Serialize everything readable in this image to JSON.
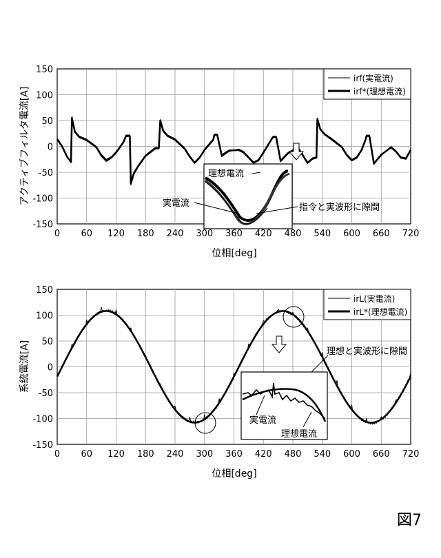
{
  "figure_label": "図7",
  "chart_data": [
    {
      "type": "line",
      "ylabel": "アクティブフィルタ電流[A]",
      "xlabel": "位相[deg]",
      "xlim": [
        0,
        720
      ],
      "ylim": [
        -150,
        150
      ],
      "xticks": [
        0,
        60,
        120,
        180,
        240,
        300,
        360,
        420,
        480,
        540,
        600,
        660,
        720
      ],
      "yticks": [
        -150,
        -100,
        -50,
        0,
        50,
        100,
        150
      ],
      "grid": true,
      "legend_position": "top-right",
      "series": [
        {
          "name": "irf(実電流)",
          "style": "thin",
          "x": [
            0,
            10,
            20,
            28,
            30,
            36,
            45,
            60,
            80,
            90,
            100,
            110,
            120,
            135,
            140,
            148,
            150,
            156,
            165,
            180,
            200,
            207,
            210,
            216,
            225,
            240,
            260,
            270,
            280,
            290,
            300,
            318,
            320,
            326,
            335,
            350,
            370,
            380,
            390,
            400,
            410,
            420,
            438,
            440,
            446,
            455,
            470,
            490,
            500,
            510,
            520,
            528,
            530,
            536,
            545,
            560,
            580,
            590,
            600,
            610,
            620,
            628,
            630,
            636,
            645,
            660,
            680,
            690,
            700,
            710,
            720
          ],
          "y": [
            15,
            0,
            -20,
            -32,
            58,
            30,
            20,
            14,
            0,
            -15,
            -25,
            -20,
            -10,
            10,
            22,
            22,
            -75,
            -55,
            -40,
            -20,
            -5,
            -5,
            52,
            32,
            22,
            15,
            -3,
            -18,
            -30,
            -20,
            -5,
            15,
            24,
            24,
            -20,
            -10,
            -5,
            -10,
            -20,
            -30,
            -25,
            -10,
            18,
            20,
            20,
            -30,
            -15,
            0,
            -15,
            -30,
            -22,
            -20,
            55,
            35,
            25,
            15,
            0,
            -15,
            -25,
            -20,
            -5,
            15,
            22,
            22,
            -35,
            -18,
            0,
            -8,
            -20,
            -22,
            -5
          ]
        },
        {
          "name": "irf*(理想電流)",
          "style": "thick",
          "x": [
            0,
            10,
            20,
            28,
            30,
            36,
            45,
            60,
            80,
            90,
            100,
            110,
            120,
            135,
            140,
            148,
            150,
            156,
            165,
            180,
            200,
            207,
            210,
            216,
            225,
            240,
            260,
            270,
            280,
            290,
            300,
            318,
            320,
            326,
            335,
            350,
            370,
            380,
            390,
            400,
            410,
            420,
            438,
            440,
            446,
            455,
            470,
            490,
            500,
            510,
            520,
            528,
            530,
            536,
            545,
            560,
            580,
            590,
            600,
            610,
            620,
            628,
            630,
            636,
            645,
            660,
            680,
            690,
            700,
            710,
            720
          ],
          "y": [
            14,
            0,
            -20,
            -30,
            55,
            28,
            18,
            12,
            -2,
            -18,
            -28,
            -22,
            -12,
            8,
            20,
            20,
            -72,
            -52,
            -38,
            -18,
            -3,
            -3,
            50,
            30,
            20,
            13,
            -5,
            -20,
            -32,
            -22,
            -7,
            13,
            22,
            22,
            -17,
            -8,
            -7,
            -12,
            -22,
            -32,
            -27,
            -12,
            16,
            18,
            18,
            -28,
            -13,
            -2,
            -17,
            -32,
            -24,
            -22,
            53,
            33,
            23,
            13,
            -2,
            -17,
            -27,
            -22,
            -7,
            13,
            20,
            20,
            -33,
            -16,
            -2,
            -10,
            -22,
            -24,
            -7
          ]
        }
      ],
      "annotations": [
        "理想電流",
        "実電流",
        "指令と実波形に隙間"
      ]
    },
    {
      "type": "line",
      "ylabel": "系統電流[A]",
      "xlabel": "位相[deg]",
      "xlim": [
        0,
        720
      ],
      "ylim": [
        -150,
        150
      ],
      "xticks": [
        0,
        60,
        120,
        180,
        240,
        300,
        360,
        420,
        480,
        540,
        600,
        660,
        720
      ],
      "yticks": [
        -150,
        -100,
        -50,
        0,
        50,
        100,
        150
      ],
      "grid": true,
      "legend_position": "top-right",
      "amplitude": 108,
      "period_deg": 360,
      "phase_offset_deg": 10,
      "series": [
        {
          "name": "irL(実電流)",
          "style": "thin"
        },
        {
          "name": "irL*(理想電流)",
          "style": "thick"
        }
      ],
      "annotations": [
        "理想と実波形に隙間",
        "実電流",
        "理想電流"
      ]
    }
  ]
}
